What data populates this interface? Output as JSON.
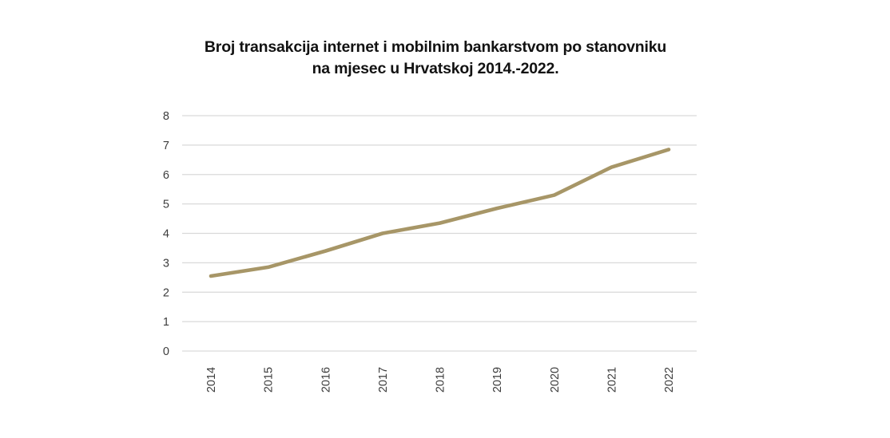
{
  "page": {
    "background_color": "#ffffff"
  },
  "chart": {
    "title": "Broj transakcija internet i mobilnim bankarstvom po stanovniku na mjesec u Hrvatskoj 2014.-2022."
  },
  "chart_data": {
    "type": "line",
    "title": "Broj transakcija internet i mobilnim bankarstvom po stanovniku na mjesec u Hrvatskoj 2014.-2022.",
    "x": [
      "2014",
      "2015",
      "2016",
      "2017",
      "2018",
      "2019",
      "2020",
      "2021",
      "2022"
    ],
    "values": [
      2.55,
      2.85,
      3.4,
      4.0,
      4.35,
      4.85,
      5.3,
      6.25,
      6.85
    ],
    "xlabel": "",
    "ylabel": "",
    "ylim": [
      0,
      8
    ],
    "yticks": [
      0,
      1,
      2,
      3,
      4,
      5,
      6,
      7,
      8
    ],
    "grid": "horizontal-only",
    "legend": "none",
    "colors": {
      "line": "#a79667",
      "gridline": "#d9d9d9",
      "tick_label": "#3d3d3d",
      "title": "#121212"
    }
  }
}
